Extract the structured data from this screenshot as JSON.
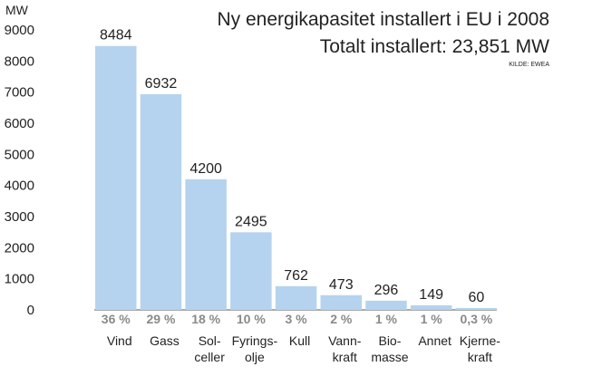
{
  "chart_data": {
    "type": "bar",
    "title": "Ny energikapasitet installert i EU i 2008",
    "subtitle": "Totalt installert: 23,851 MW",
    "source": "KILDE: EWEA",
    "ylabel": "MW",
    "ylim": [
      0,
      9000
    ],
    "yticks": [
      "0",
      "1000",
      "2000",
      "3000",
      "4000",
      "5000",
      "6000",
      "7000",
      "8000",
      "9000"
    ],
    "bar_color": "#b5d3ee",
    "categories": [
      {
        "label": [
          "Vind"
        ],
        "value": 8484,
        "value_label": "8484",
        "percent": "36 %"
      },
      {
        "label": [
          "Gass"
        ],
        "value": 6932,
        "value_label": "6932",
        "percent": "29 %"
      },
      {
        "label": [
          "Sol-",
          "celler"
        ],
        "value": 4200,
        "value_label": "4200",
        "percent": "18 %"
      },
      {
        "label": [
          "Fyrings-",
          "olje"
        ],
        "value": 2495,
        "value_label": "2495",
        "percent": "10 %"
      },
      {
        "label": [
          "Kull"
        ],
        "value": 762,
        "value_label": "762",
        "percent": "3 %"
      },
      {
        "label": [
          "Vann-",
          "kraft"
        ],
        "value": 473,
        "value_label": "473",
        "percent": "2 %"
      },
      {
        "label": [
          "Bio-",
          "masse"
        ],
        "value": 296,
        "value_label": "296",
        "percent": "1 %"
      },
      {
        "label": [
          "Annet"
        ],
        "value": 149,
        "value_label": "149",
        "percent": "1 %"
      },
      {
        "label": [
          "Kjerne-",
          "kraft"
        ],
        "value": 60,
        "value_label": "60",
        "percent": "0,3 %"
      }
    ]
  }
}
